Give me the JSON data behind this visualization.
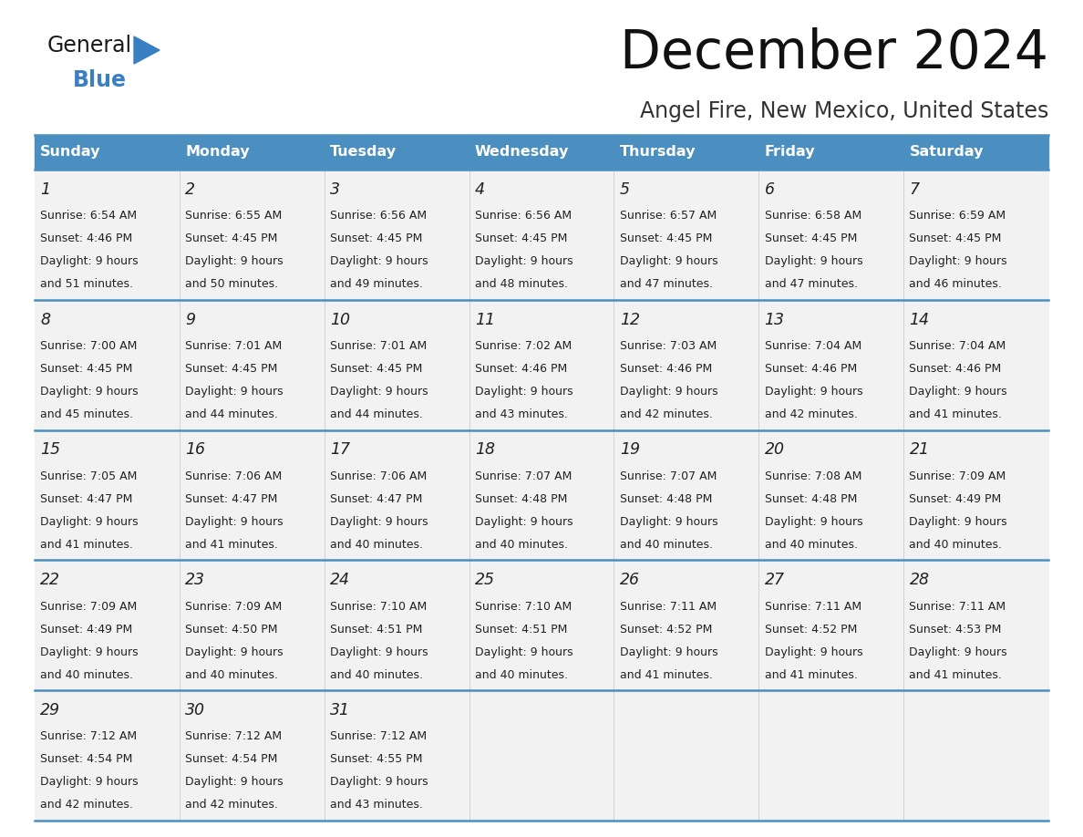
{
  "title": "December 2024",
  "subtitle": "Angel Fire, New Mexico, United States",
  "header_color": "#4A8FC0",
  "header_text_color": "#FFFFFF",
  "day_names": [
    "Sunday",
    "Monday",
    "Tuesday",
    "Wednesday",
    "Thursday",
    "Friday",
    "Saturday"
  ],
  "bg_color": "#FFFFFF",
  "cell_bg_color": "#F2F2F2",
  "border_color": "#4A8FC0",
  "text_color": "#222222",
  "logo_general_color": "#1a1a1a",
  "logo_blue_color": "#3A7FC1",
  "days": [
    {
      "day": 1,
      "col": 0,
      "row": 0,
      "sunrise": "6:54 AM",
      "sunset": "4:46 PM",
      "daylight": "9 hours and 51 minutes."
    },
    {
      "day": 2,
      "col": 1,
      "row": 0,
      "sunrise": "6:55 AM",
      "sunset": "4:45 PM",
      "daylight": "9 hours and 50 minutes."
    },
    {
      "day": 3,
      "col": 2,
      "row": 0,
      "sunrise": "6:56 AM",
      "sunset": "4:45 PM",
      "daylight": "9 hours and 49 minutes."
    },
    {
      "day": 4,
      "col": 3,
      "row": 0,
      "sunrise": "6:56 AM",
      "sunset": "4:45 PM",
      "daylight": "9 hours and 48 minutes."
    },
    {
      "day": 5,
      "col": 4,
      "row": 0,
      "sunrise": "6:57 AM",
      "sunset": "4:45 PM",
      "daylight": "9 hours and 47 minutes."
    },
    {
      "day": 6,
      "col": 5,
      "row": 0,
      "sunrise": "6:58 AM",
      "sunset": "4:45 PM",
      "daylight": "9 hours and 47 minutes."
    },
    {
      "day": 7,
      "col": 6,
      "row": 0,
      "sunrise": "6:59 AM",
      "sunset": "4:45 PM",
      "daylight": "9 hours and 46 minutes."
    },
    {
      "day": 8,
      "col": 0,
      "row": 1,
      "sunrise": "7:00 AM",
      "sunset": "4:45 PM",
      "daylight": "9 hours and 45 minutes."
    },
    {
      "day": 9,
      "col": 1,
      "row": 1,
      "sunrise": "7:01 AM",
      "sunset": "4:45 PM",
      "daylight": "9 hours and 44 minutes."
    },
    {
      "day": 10,
      "col": 2,
      "row": 1,
      "sunrise": "7:01 AM",
      "sunset": "4:45 PM",
      "daylight": "9 hours and 44 minutes."
    },
    {
      "day": 11,
      "col": 3,
      "row": 1,
      "sunrise": "7:02 AM",
      "sunset": "4:46 PM",
      "daylight": "9 hours and 43 minutes."
    },
    {
      "day": 12,
      "col": 4,
      "row": 1,
      "sunrise": "7:03 AM",
      "sunset": "4:46 PM",
      "daylight": "9 hours and 42 minutes."
    },
    {
      "day": 13,
      "col": 5,
      "row": 1,
      "sunrise": "7:04 AM",
      "sunset": "4:46 PM",
      "daylight": "9 hours and 42 minutes."
    },
    {
      "day": 14,
      "col": 6,
      "row": 1,
      "sunrise": "7:04 AM",
      "sunset": "4:46 PM",
      "daylight": "9 hours and 41 minutes."
    },
    {
      "day": 15,
      "col": 0,
      "row": 2,
      "sunrise": "7:05 AM",
      "sunset": "4:47 PM",
      "daylight": "9 hours and 41 minutes."
    },
    {
      "day": 16,
      "col": 1,
      "row": 2,
      "sunrise": "7:06 AM",
      "sunset": "4:47 PM",
      "daylight": "9 hours and 41 minutes."
    },
    {
      "day": 17,
      "col": 2,
      "row": 2,
      "sunrise": "7:06 AM",
      "sunset": "4:47 PM",
      "daylight": "9 hours and 40 minutes."
    },
    {
      "day": 18,
      "col": 3,
      "row": 2,
      "sunrise": "7:07 AM",
      "sunset": "4:48 PM",
      "daylight": "9 hours and 40 minutes."
    },
    {
      "day": 19,
      "col": 4,
      "row": 2,
      "sunrise": "7:07 AM",
      "sunset": "4:48 PM",
      "daylight": "9 hours and 40 minutes."
    },
    {
      "day": 20,
      "col": 5,
      "row": 2,
      "sunrise": "7:08 AM",
      "sunset": "4:48 PM",
      "daylight": "9 hours and 40 minutes."
    },
    {
      "day": 21,
      "col": 6,
      "row": 2,
      "sunrise": "7:09 AM",
      "sunset": "4:49 PM",
      "daylight": "9 hours and 40 minutes."
    },
    {
      "day": 22,
      "col": 0,
      "row": 3,
      "sunrise": "7:09 AM",
      "sunset": "4:49 PM",
      "daylight": "9 hours and 40 minutes."
    },
    {
      "day": 23,
      "col": 1,
      "row": 3,
      "sunrise": "7:09 AM",
      "sunset": "4:50 PM",
      "daylight": "9 hours and 40 minutes."
    },
    {
      "day": 24,
      "col": 2,
      "row": 3,
      "sunrise": "7:10 AM",
      "sunset": "4:51 PM",
      "daylight": "9 hours and 40 minutes."
    },
    {
      "day": 25,
      "col": 3,
      "row": 3,
      "sunrise": "7:10 AM",
      "sunset": "4:51 PM",
      "daylight": "9 hours and 40 minutes."
    },
    {
      "day": 26,
      "col": 4,
      "row": 3,
      "sunrise": "7:11 AM",
      "sunset": "4:52 PM",
      "daylight": "9 hours and 41 minutes."
    },
    {
      "day": 27,
      "col": 5,
      "row": 3,
      "sunrise": "7:11 AM",
      "sunset": "4:52 PM",
      "daylight": "9 hours and 41 minutes."
    },
    {
      "day": 28,
      "col": 6,
      "row": 3,
      "sunrise": "7:11 AM",
      "sunset": "4:53 PM",
      "daylight": "9 hours and 41 minutes."
    },
    {
      "day": 29,
      "col": 0,
      "row": 4,
      "sunrise": "7:12 AM",
      "sunset": "4:54 PM",
      "daylight": "9 hours and 42 minutes."
    },
    {
      "day": 30,
      "col": 1,
      "row": 4,
      "sunrise": "7:12 AM",
      "sunset": "4:54 PM",
      "daylight": "9 hours and 42 minutes."
    },
    {
      "day": 31,
      "col": 2,
      "row": 4,
      "sunrise": "7:12 AM",
      "sunset": "4:55 PM",
      "daylight": "9 hours and 43 minutes."
    }
  ],
  "num_rows": 5,
  "num_cols": 7
}
